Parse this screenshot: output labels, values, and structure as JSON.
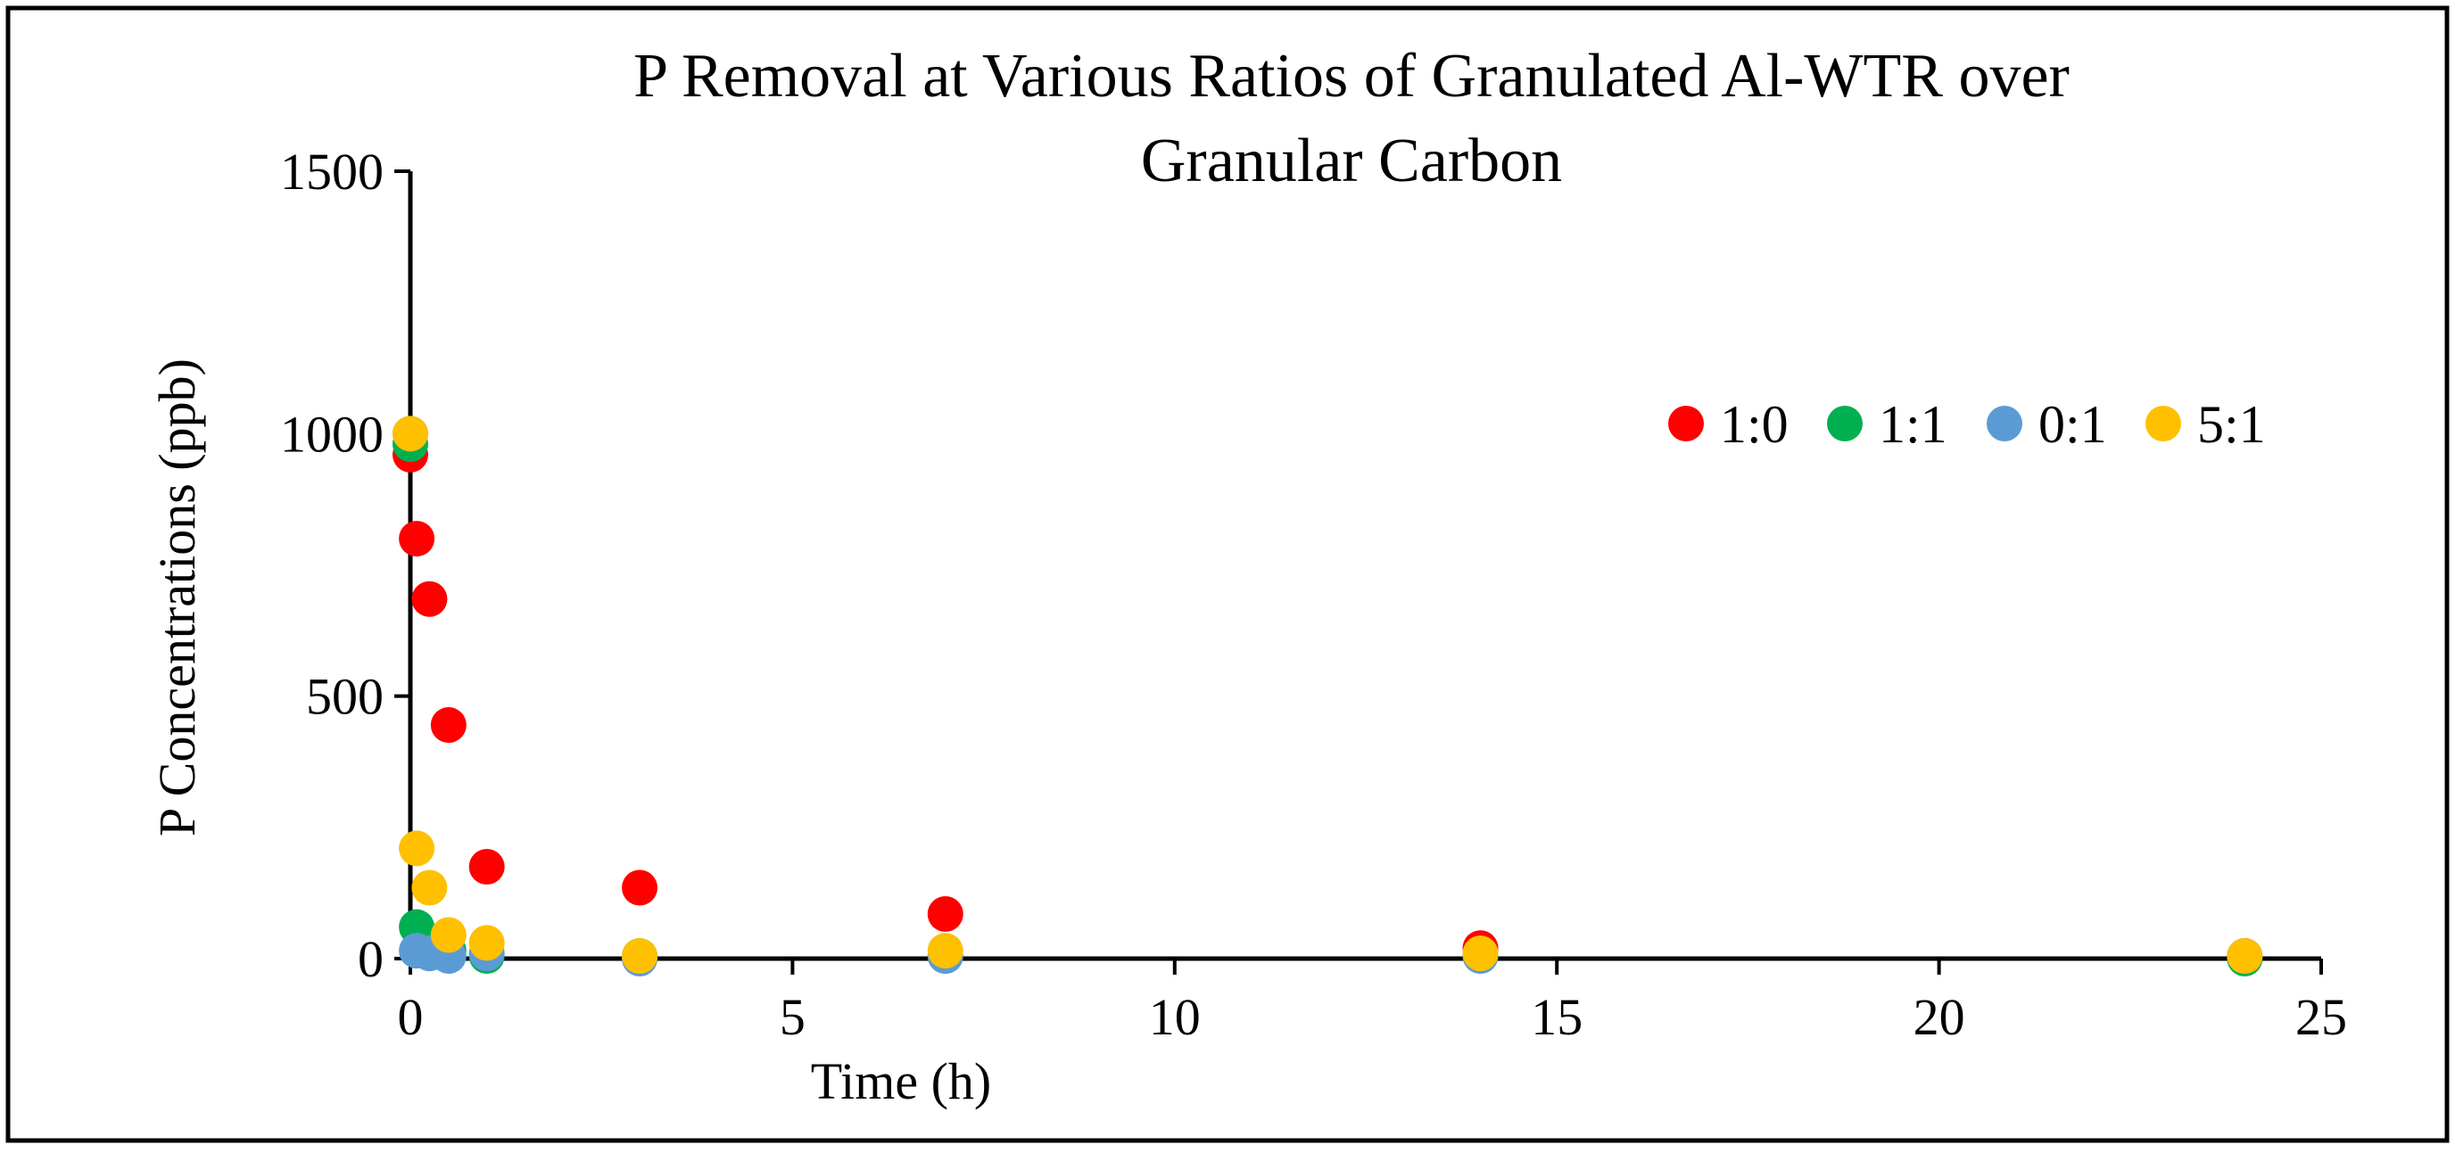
{
  "chart_data": {
    "type": "scatter",
    "title": "P Removal at Various Ratios of Granulated Al-WTR over Granular Carbon",
    "title_lines": [
      "P Removal at Various Ratios of Granulated Al-WTR over",
      "Granular Carbon"
    ],
    "xlabel": "Time (h)",
    "ylabel": "P Concentrations (ppb)",
    "xlim": [
      0,
      25
    ],
    "ylim": [
      0,
      1500
    ],
    "x_ticks": [
      0,
      5,
      10,
      15,
      20,
      25
    ],
    "y_ticks": [
      0,
      500,
      1000,
      1500
    ],
    "x_tick_labels": [
      "0",
      "5",
      "10",
      "15",
      "20",
      "25"
    ],
    "y_tick_labels": [
      "0",
      "500",
      "1000",
      "1500"
    ],
    "grid": false,
    "legend_position": "top-right",
    "series": [
      {
        "name": "1:0",
        "color": "#ff0000",
        "x": [
          0,
          0.083,
          0.25,
          0.5,
          1,
          3,
          7,
          14,
          24
        ],
        "y": [
          960,
          800,
          685,
          445,
          175,
          135,
          85,
          20,
          5
        ]
      },
      {
        "name": "1:1",
        "color": "#00b050",
        "x": [
          0,
          0.083,
          0.25,
          0.5,
          1,
          3,
          7,
          14,
          24
        ],
        "y": [
          980,
          60,
          20,
          15,
          5,
          5,
          5,
          5,
          0
        ]
      },
      {
        "name": "0:1",
        "color": "#5b9bd5",
        "x": [
          0,
          0.083,
          0.25,
          0.5,
          1,
          3,
          7,
          14,
          24
        ],
        "y": [
          1000,
          15,
          10,
          5,
          10,
          0,
          5,
          5,
          5
        ]
      },
      {
        "name": "5:1",
        "color": "#ffc000",
        "x": [
          0,
          0.083,
          0.25,
          0.5,
          1,
          3,
          7,
          14,
          24
        ],
        "y": [
          1000,
          210,
          135,
          45,
          30,
          5,
          15,
          10,
          5
        ]
      }
    ]
  }
}
